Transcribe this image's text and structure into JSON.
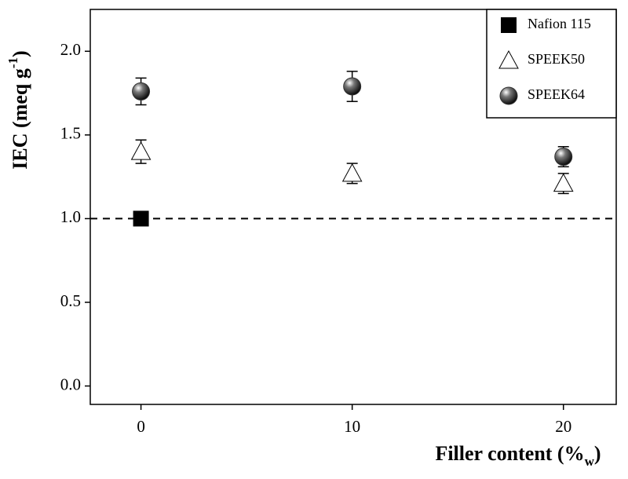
{
  "chart_data": {
    "type": "scatter",
    "xlabel": [
      "Filler content (%",
      "w",
      ")"
    ],
    "ylabel": [
      "IEC (meq g",
      "-1",
      ")"
    ],
    "xlim": [
      -2.4,
      22.5
    ],
    "ylim": [
      -0.11,
      2.25
    ],
    "xticks": [
      0,
      10,
      20
    ],
    "yticks": [
      {
        "value": 0,
        "label": "0.0"
      },
      0.5,
      {
        "value": 1,
        "label": "1.0"
      },
      1.5,
      {
        "value": 2,
        "label": "2.0"
      }
    ],
    "hline": 1.0,
    "legend": "upper right",
    "series": [
      {
        "name": "Nafion 115",
        "color": "#000000",
        "marker": "square",
        "x": [
          0
        ],
        "values": [
          1.0
        ],
        "errors": [
          0
        ]
      },
      {
        "name": "SPEEK50",
        "color": "#ffffff",
        "marker": "triangle",
        "x": [
          0,
          10,
          20
        ],
        "values": [
          1.4,
          1.27,
          1.21
        ],
        "errors": [
          0.07,
          0.06,
          0.06
        ]
      },
      {
        "name": "SPEEK64",
        "color": "#333333",
        "marker": "sphere",
        "x": [
          0,
          10,
          20
        ],
        "values": [
          1.76,
          1.79,
          1.37
        ],
        "errors": [
          0.08,
          0.09,
          0.06
        ]
      }
    ]
  }
}
